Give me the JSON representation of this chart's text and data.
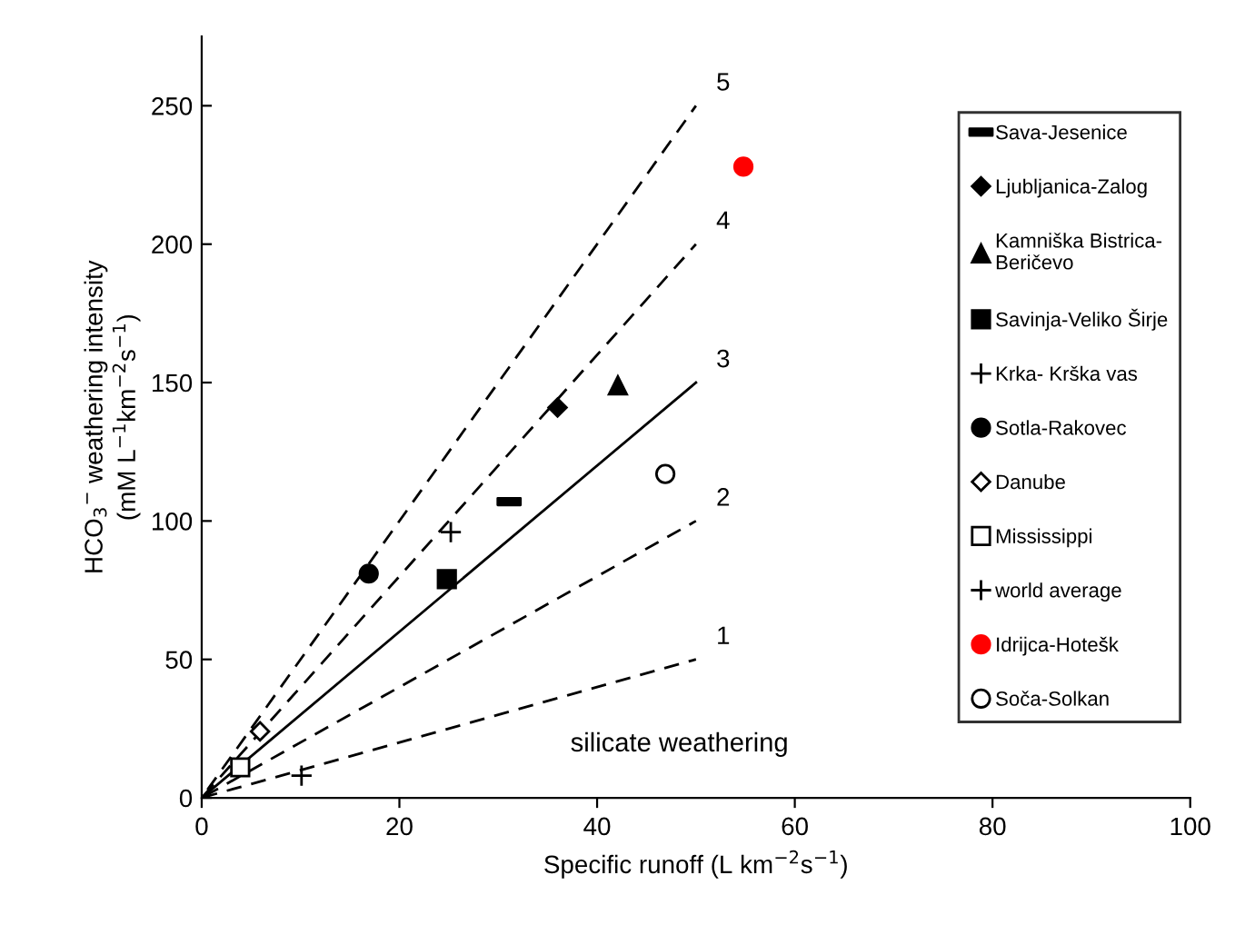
{
  "chart_data": {
    "type": "scatter",
    "xlabel": "Specific runoff (L km$^{−2}$s$^{−1}$)",
    "ylabel": "HCO$_{3}$$^{−}$ weathering intensity\n(mM L$^{−1}$km$^{−2}$s$^{−1}$)",
    "xlim": [
      0,
      100
    ],
    "xticks": [
      0,
      20,
      40,
      60,
      80,
      100
    ],
    "ylim": [
      0,
      275
    ],
    "yticks": [
      0,
      50,
      100,
      150,
      200,
      250
    ],
    "grid": false,
    "legend": "right",
    "annotations": [
      "silicate weathering"
    ],
    "series": [
      {
        "name": "Sava-Jesenice",
        "color": "#000000",
        "x": [
          31.1
        ],
        "values": [
          107
        ]
      },
      {
        "name": "Ljubljanica-Zalog",
        "color": "#000000",
        "marker": "diamond",
        "x": [
          36.0
        ],
        "values": [
          141
        ]
      },
      {
        "name": "Kamniška Bistrica-\nBeričevo",
        "color": "#000000",
        "marker": "triangle",
        "x": [
          42.1
        ],
        "values": [
          149
        ]
      },
      {
        "name": "Savinja-Veliko Širje",
        "color": "#000000",
        "marker": "square",
        "x": [
          24.8
        ],
        "values": [
          79
        ]
      },
      {
        "name": "Krka- Krška vas",
        "color": "#000000",
        "marker": "cross",
        "x": [
          25.2
        ],
        "values": [
          96
        ]
      },
      {
        "name": "Sotla-Rakovec",
        "color": "#000000",
        "marker": "circle",
        "x": [
          16.9
        ],
        "values": [
          81
        ]
      },
      {
        "name": "Danube",
        "color": "#ffffff",
        "marker": "diamond",
        "x": [
          5.9
        ],
        "values": [
          24
        ]
      },
      {
        "name": "Mississippi",
        "color": "#ffffff",
        "marker": "square",
        "x": [
          3.9
        ],
        "values": [
          11
        ]
      },
      {
        "name": "world average",
        "color": "#000000",
        "marker": "cross",
        "x": [
          10.1
        ],
        "values": [
          8
        ]
      },
      {
        "name": "Idrijca-Hotešk",
        "color": "#ff0000",
        "marker": "circle",
        "x": [
          54.8
        ],
        "values": [
          228
        ]
      },
      {
        "name": "Soča-Solkan",
        "color": "#ffffff",
        "marker": "circle",
        "x": [
          46.9
        ],
        "values": [
          117
        ]
      },
      {
        "name": "5",
        "type": "line",
        "color": "#000000",
        "line_style": "dashed",
        "x": [
          0,
          50
        ],
        "values": [
          0,
          250
        ]
      },
      {
        "name": "4",
        "type": "line",
        "color": "#000000",
        "line_style": "dashed",
        "x": [
          0,
          50
        ],
        "values": [
          0,
          200
        ]
      },
      {
        "name": "3",
        "type": "line",
        "color": "#000000",
        "line_style": "solid",
        "x": [
          0,
          50
        ],
        "values": [
          0,
          150
        ]
      },
      {
        "name": "2",
        "type": "line",
        "color": "#000000",
        "line_style": "dashed",
        "x": [
          0,
          50
        ],
        "values": [
          0,
          100
        ]
      },
      {
        "name": "1",
        "type": "line",
        "color": "#000000",
        "line_style": "dashed",
        "x": [
          0,
          50
        ],
        "values": [
          0,
          50
        ]
      }
    ]
  }
}
